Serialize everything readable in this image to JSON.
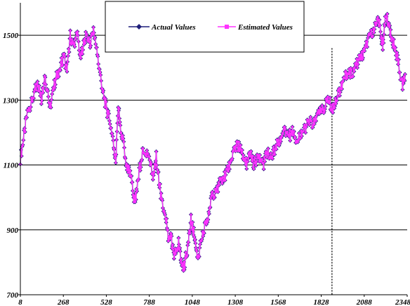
{
  "chart_data": {
    "type": "line",
    "title": "",
    "xlabel": "",
    "ylabel": "",
    "xlim": [
      8,
      2348
    ],
    "ylim": [
      700,
      1600
    ],
    "x_ticks": [
      8,
      268,
      528,
      788,
      1048,
      1308,
      1568,
      1828,
      2088,
      2348
    ],
    "y_ticks": [
      700,
      900,
      1100,
      1300,
      1500
    ],
    "y_gridlines": [
      900,
      1100,
      1300,
      1500
    ],
    "grid": true,
    "legend_placement": "top-center",
    "vertical_marker_x": 1893,
    "series": [
      {
        "name": "Actual Values",
        "color": "#1f1f7a",
        "marker": "diamond",
        "points": [
          [
            8,
            1120
          ],
          [
            30,
            1190
          ],
          [
            50,
            1260
          ],
          [
            75,
            1290
          ],
          [
            95,
            1330
          ],
          [
            115,
            1350
          ],
          [
            135,
            1300
          ],
          [
            155,
            1380
          ],
          [
            175,
            1320
          ],
          [
            190,
            1280
          ],
          [
            210,
            1340
          ],
          [
            230,
            1380
          ],
          [
            250,
            1400
          ],
          [
            270,
            1440
          ],
          [
            290,
            1390
          ],
          [
            310,
            1500
          ],
          [
            330,
            1460
          ],
          [
            350,
            1520
          ],
          [
            370,
            1420
          ],
          [
            390,
            1480
          ],
          [
            410,
            1500
          ],
          [
            430,
            1470
          ],
          [
            450,
            1520
          ],
          [
            470,
            1450
          ],
          [
            490,
            1380
          ],
          [
            510,
            1320
          ],
          [
            530,
            1270
          ],
          [
            550,
            1230
          ],
          [
            570,
            1180
          ],
          [
            585,
            1100
          ],
          [
            600,
            1290
          ],
          [
            615,
            1200
          ],
          [
            630,
            1170
          ],
          [
            650,
            1090
          ],
          [
            665,
            1080
          ],
          [
            680,
            1060
          ],
          [
            695,
            990
          ],
          [
            710,
            1010
          ],
          [
            730,
            1090
          ],
          [
            750,
            1150
          ],
          [
            770,
            1140
          ],
          [
            790,
            1120
          ],
          [
            810,
            1060
          ],
          [
            830,
            1130
          ],
          [
            850,
            1040
          ],
          [
            870,
            960
          ],
          [
            890,
            930
          ],
          [
            905,
            860
          ],
          [
            920,
            880
          ],
          [
            935,
            820
          ],
          [
            950,
            830
          ],
          [
            965,
            860
          ],
          [
            980,
            800
          ],
          [
            995,
            780
          ],
          [
            1010,
            820
          ],
          [
            1025,
            860
          ],
          [
            1040,
            930
          ],
          [
            1055,
            900
          ],
          [
            1070,
            850
          ],
          [
            1085,
            810
          ],
          [
            1100,
            860
          ],
          [
            1120,
            900
          ],
          [
            1140,
            940
          ],
          [
            1160,
            990
          ],
          [
            1180,
            1010
          ],
          [
            1200,
            1030
          ],
          [
            1220,
            1050
          ],
          [
            1240,
            1060
          ],
          [
            1260,
            1080
          ],
          [
            1280,
            1110
          ],
          [
            1300,
            1140
          ],
          [
            1320,
            1160
          ],
          [
            1340,
            1150
          ],
          [
            1360,
            1120
          ],
          [
            1380,
            1100
          ],
          [
            1400,
            1140
          ],
          [
            1420,
            1100
          ],
          [
            1440,
            1120
          ],
          [
            1460,
            1130
          ],
          [
            1480,
            1100
          ],
          [
            1500,
            1140
          ],
          [
            1520,
            1120
          ],
          [
            1540,
            1140
          ],
          [
            1560,
            1170
          ],
          [
            1580,
            1180
          ],
          [
            1600,
            1210
          ],
          [
            1620,
            1200
          ],
          [
            1640,
            1190
          ],
          [
            1660,
            1210
          ],
          [
            1680,
            1170
          ],
          [
            1700,
            1190
          ],
          [
            1720,
            1210
          ],
          [
            1740,
            1220
          ],
          [
            1760,
            1240
          ],
          [
            1780,
            1220
          ],
          [
            1800,
            1250
          ],
          [
            1820,
            1270
          ],
          [
            1840,
            1270
          ],
          [
            1860,
            1290
          ],
          [
            1875,
            1300
          ],
          [
            1893,
            1270
          ],
          [
            1910,
            1290
          ],
          [
            1930,
            1320
          ],
          [
            1950,
            1340
          ],
          [
            1970,
            1370
          ],
          [
            1990,
            1390
          ],
          [
            2010,
            1380
          ],
          [
            2030,
            1400
          ],
          [
            2050,
            1420
          ],
          [
            2070,
            1430
          ],
          [
            2090,
            1450
          ],
          [
            2110,
            1480
          ],
          [
            2130,
            1500
          ],
          [
            2150,
            1530
          ],
          [
            2170,
            1560
          ],
          [
            2190,
            1500
          ],
          [
            2200,
            1470
          ],
          [
            2215,
            1540
          ],
          [
            2230,
            1550
          ],
          [
            2245,
            1510
          ],
          [
            2260,
            1480
          ],
          [
            2280,
            1450
          ],
          [
            2300,
            1400
          ],
          [
            2320,
            1340
          ],
          [
            2335,
            1380
          ]
        ]
      },
      {
        "name": "Estimated Values",
        "color": "#ff33ff",
        "marker": "square",
        "same_as": "Actual Values"
      }
    ]
  }
}
